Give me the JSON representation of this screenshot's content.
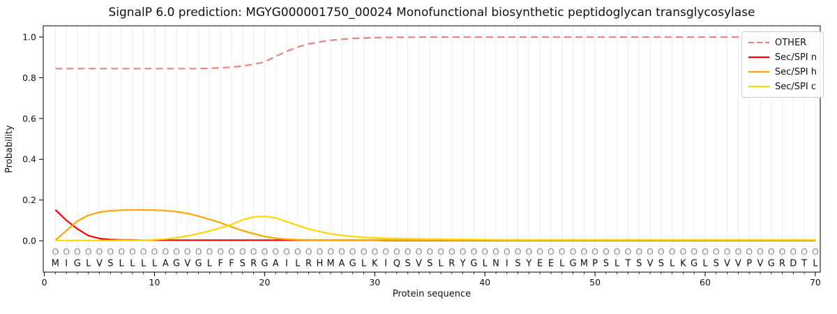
{
  "figure": {
    "background": "#ffffff"
  },
  "chart_data": {
    "type": "line",
    "title": "SignalP 6.0 prediction: MGYG000001750_00024 Monofunctional biosynthetic peptidoglycan transglycosylase",
    "xlabel": "Protein sequence",
    "ylabel": "Probability",
    "xlim": [
      -0.1,
      70.45
    ],
    "ylim": [
      -0.154,
      1.055
    ],
    "xticks": [
      0,
      10,
      20,
      30,
      40,
      50,
      60,
      70
    ],
    "yticks": [
      0.0,
      0.2,
      0.4,
      0.6,
      0.8,
      1.0
    ],
    "grid": {
      "vertical_per_residue": true,
      "color": "#ececec",
      "horizontal": false
    },
    "legend_position": "upper right",
    "sequence": "MIGLVSLLLLAGVGLFFSRGAILRHMAGLKIQSVSLRYGLNISYEELGMPSLTSVSLKGLSVVPVGRDTL",
    "predicted_labels": "OOOOOOOOOOOOOOOOOOOOOOOOOOOOOOOOOOOOOOOOOOOOOOOOOOOOOOOOOOOOOOOOOOOOOO",
    "x": [
      1,
      2,
      3,
      4,
      5,
      6,
      7,
      8,
      9,
      10,
      11,
      12,
      13,
      14,
      15,
      16,
      17,
      18,
      19,
      20,
      21,
      22,
      23,
      24,
      25,
      26,
      27,
      28,
      29,
      30,
      31,
      32,
      33,
      34,
      35,
      36,
      37,
      38,
      39,
      40,
      41,
      42,
      43,
      44,
      45,
      46,
      47,
      48,
      49,
      50,
      51,
      52,
      53,
      54,
      55,
      56,
      57,
      58,
      59,
      60,
      61,
      62,
      63,
      64,
      65,
      66,
      67,
      68,
      69,
      70
    ],
    "series": [
      {
        "name": "OTHER",
        "color": "#f08080",
        "dash": true,
        "values": [
          0.845,
          0.845,
          0.845,
          0.845,
          0.845,
          0.845,
          0.845,
          0.845,
          0.845,
          0.845,
          0.845,
          0.845,
          0.845,
          0.845,
          0.846,
          0.849,
          0.852,
          0.858,
          0.866,
          0.878,
          0.905,
          0.93,
          0.951,
          0.966,
          0.976,
          0.984,
          0.989,
          0.993,
          0.995,
          0.997,
          0.998,
          0.999,
          0.999,
          1.0,
          1.0,
          1.0,
          1.0,
          1.0,
          1.0,
          1.0,
          1.0,
          1.0,
          1.0,
          1.0,
          1.0,
          1.0,
          1.0,
          1.0,
          1.0,
          1.0,
          1.0,
          1.0,
          1.0,
          1.0,
          1.0,
          1.0,
          1.0,
          1.0,
          1.0,
          1.0,
          1.0,
          1.0,
          1.0,
          1.0,
          1.0,
          1.0,
          1.0,
          1.0,
          1.0,
          1.0
        ]
      },
      {
        "name": "Sec/SPI n",
        "color": "#ff0000",
        "dash": false,
        "values": [
          0.152,
          0.1,
          0.058,
          0.025,
          0.011,
          0.006,
          0.004,
          0.004,
          0.003,
          0.003,
          0.003,
          0.003,
          0.003,
          0.003,
          0.003,
          0.003,
          0.003,
          0.003,
          0.003,
          0.003,
          0.003,
          0.003,
          0.003,
          0.003,
          0.003,
          0.003,
          0.003,
          0.003,
          0.003,
          0.003,
          0.002,
          0.002,
          0.002,
          0.002,
          0.002,
          0.002,
          0.002,
          0.002,
          0.002,
          0.002,
          0.002,
          0.002,
          0.002,
          0.002,
          0.002,
          0.002,
          0.002,
          0.002,
          0.002,
          0.002,
          0.002,
          0.002,
          0.002,
          0.002,
          0.002,
          0.002,
          0.002,
          0.002,
          0.002,
          0.002,
          0.002,
          0.002,
          0.002,
          0.002,
          0.002,
          0.002,
          0.002,
          0.002,
          0.002,
          0.002
        ]
      },
      {
        "name": "Sec/SPI h",
        "color": "#ffa500",
        "dash": false,
        "values": [
          0.002,
          0.05,
          0.096,
          0.125,
          0.14,
          0.147,
          0.15,
          0.151,
          0.151,
          0.15,
          0.148,
          0.143,
          0.134,
          0.121,
          0.105,
          0.088,
          0.068,
          0.05,
          0.034,
          0.021,
          0.012,
          0.007,
          0.005,
          0.004,
          0.004,
          0.004,
          0.004,
          0.004,
          0.004,
          0.004,
          0.004,
          0.004,
          0.004,
          0.004,
          0.004,
          0.004,
          0.004,
          0.004,
          0.004,
          0.004,
          0.004,
          0.004,
          0.004,
          0.004,
          0.004,
          0.004,
          0.004,
          0.004,
          0.004,
          0.004,
          0.004,
          0.004,
          0.004,
          0.004,
          0.004,
          0.004,
          0.004,
          0.004,
          0.004,
          0.004,
          0.004,
          0.004,
          0.004,
          0.004,
          0.004,
          0.004,
          0.004,
          0.004,
          0.004,
          0.004
        ]
      },
      {
        "name": "Sec/SPI c",
        "color": "#ffd700",
        "dash": false,
        "values": [
          0.001,
          0.001,
          0.001,
          0.001,
          0.001,
          0.001,
          0.002,
          0.002,
          0.003,
          0.005,
          0.008,
          0.015,
          0.024,
          0.035,
          0.048,
          0.063,
          0.08,
          0.103,
          0.117,
          0.12,
          0.112,
          0.094,
          0.075,
          0.058,
          0.045,
          0.034,
          0.027,
          0.021,
          0.017,
          0.014,
          0.012,
          0.011,
          0.01,
          0.009,
          0.008,
          0.008,
          0.007,
          0.007,
          0.006,
          0.006,
          0.005,
          0.005,
          0.005,
          0.005,
          0.005,
          0.005,
          0.005,
          0.005,
          0.005,
          0.005,
          0.005,
          0.005,
          0.005,
          0.005,
          0.005,
          0.005,
          0.005,
          0.005,
          0.005,
          0.005,
          0.005,
          0.005,
          0.005,
          0.005,
          0.005,
          0.005,
          0.005,
          0.005,
          0.005,
          0.005
        ]
      }
    ],
    "style": {
      "axis_color": "#000000",
      "tick_label_color": "#111111",
      "sequence_letter_color": "#111111",
      "predicted_label_color": "#8a8a8a",
      "line_width": 2.2
    }
  }
}
